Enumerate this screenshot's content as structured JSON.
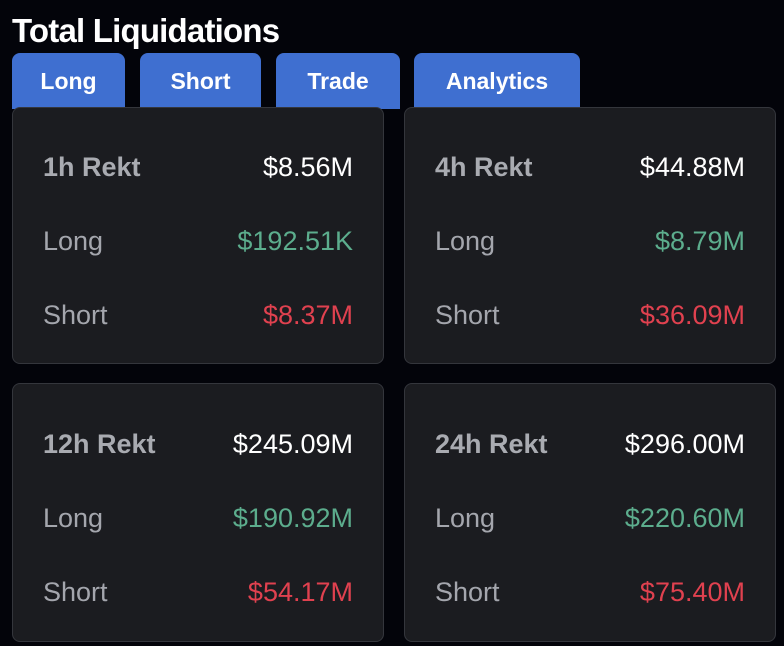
{
  "page": {
    "title": "Total Liquidations"
  },
  "tabs": [
    {
      "label": "Long"
    },
    {
      "label": "Short"
    },
    {
      "label": "Trade"
    },
    {
      "label": "Analytics"
    }
  ],
  "colors": {
    "tab_background": "#3f6fd0",
    "card_background": "#1b1c20",
    "long_value": "#5cad8d",
    "short_value": "#e0414f",
    "total_value": "#ffffff"
  },
  "cards": [
    {
      "period": "1h Rekt",
      "total": "$8.56M",
      "long_label": "Long",
      "long": "$192.51K",
      "short_label": "Short",
      "short": "$8.37M"
    },
    {
      "period": "4h Rekt",
      "total": "$44.88M",
      "long_label": "Long",
      "long": "$8.79M",
      "short_label": "Short",
      "short": "$36.09M"
    },
    {
      "period": "12h Rekt",
      "total": "$245.09M",
      "long_label": "Long",
      "long": "$190.92M",
      "short_label": "Short",
      "short": "$54.17M"
    },
    {
      "period": "24h Rekt",
      "total": "$296.00M",
      "long_label": "Long",
      "long": "$220.60M",
      "short_label": "Short",
      "short": "$75.40M"
    }
  ]
}
